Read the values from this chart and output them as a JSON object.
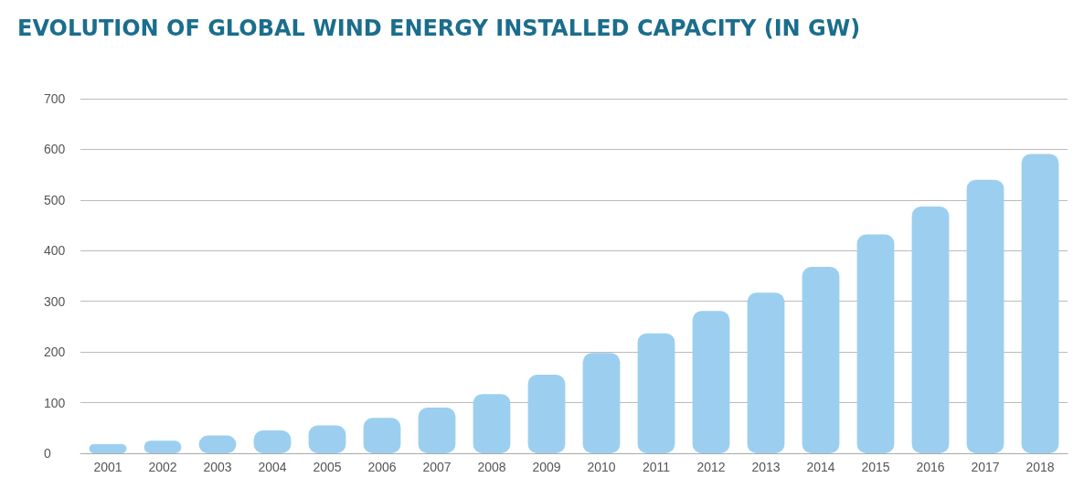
{
  "chart_data": {
    "type": "bar",
    "title": "EVOLUTION OF GLOBAL WIND ENERGY INSTALLED CAPACITY (IN GW)",
    "categories": [
      "2001",
      "2002",
      "2003",
      "2004",
      "2005",
      "2006",
      "2007",
      "2008",
      "2009",
      "2010",
      "2011",
      "2012",
      "2013",
      "2014",
      "2015",
      "2016",
      "2017",
      "2018"
    ],
    "values": [
      18,
      25,
      35,
      45,
      55,
      70,
      90,
      117,
      155,
      198,
      237,
      281,
      317,
      368,
      432,
      487,
      540,
      591
    ],
    "color": "#9ccfef",
    "ylim": [
      0,
      700
    ],
    "yticks": [
      0,
      100,
      200,
      300,
      400,
      500,
      600,
      700
    ],
    "grid": "y"
  }
}
